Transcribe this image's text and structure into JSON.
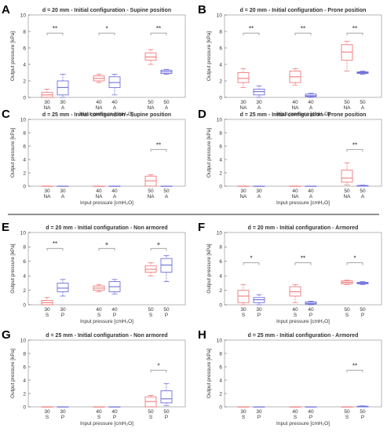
{
  "figure": {
    "separator": true
  },
  "colors": {
    "red": "#f07a7a",
    "blue": "#6f6fdc",
    "axis": "#333333",
    "bracket": "#888888"
  },
  "chart_data": [
    {
      "id": "A",
      "type": "box",
      "label": "A",
      "title": "d = 20 mm - Initial configuration - Supine position",
      "ylabel": "Output pressure [kPa]",
      "xlabel": "Input pressure [cmH₂O]",
      "ylim": [
        0,
        10
      ],
      "yticks": [
        0,
        2,
        4,
        6,
        8,
        10
      ],
      "categories": [
        "30",
        "30",
        "40",
        "40",
        "50",
        "50"
      ],
      "sublabels": [
        "NA",
        "A",
        "NA",
        "A",
        "NA",
        "A"
      ],
      "colors": [
        "red",
        "blue",
        "red",
        "blue",
        "red",
        "blue"
      ],
      "boxes": [
        {
          "min": 0,
          "q1": 0,
          "med": 0.3,
          "q3": 0.6,
          "max": 1
        },
        {
          "min": 0,
          "q1": 0.3,
          "med": 1.2,
          "q3": 2,
          "max": 2.8
        },
        {
          "min": 1.8,
          "q1": 2,
          "med": 2.3,
          "q3": 2.6,
          "max": 2.8
        },
        {
          "min": 0.3,
          "q1": 1.2,
          "med": 1.8,
          "q3": 2.5,
          "max": 2.8
        },
        {
          "min": 4,
          "q1": 4.5,
          "med": 4.9,
          "q3": 5.4,
          "max": 5.8
        },
        {
          "min": 2.8,
          "q1": 2.9,
          "med": 3.1,
          "q3": 3.3,
          "max": 3.4
        }
      ],
      "significance": [
        {
          "pair": [
            0,
            1
          ],
          "y": 7.8,
          "label": "**"
        },
        {
          "pair": [
            2,
            3
          ],
          "y": 7.8,
          "label": "*"
        },
        {
          "pair": [
            4,
            5
          ],
          "y": 7.8,
          "label": "**"
        }
      ]
    },
    {
      "id": "B",
      "type": "box",
      "label": "B",
      "title": "d = 20 mm - Initial configuration - Prone position",
      "ylabel": "Output pressure [kPa]",
      "xlabel": "Input pressure [cmH₂O]",
      "ylim": [
        0,
        10
      ],
      "yticks": [
        0,
        2,
        4,
        6,
        8,
        10
      ],
      "categories": [
        "30",
        "30",
        "40",
        "40",
        "50",
        "50"
      ],
      "sublabels": [
        "NA",
        "A",
        "NA",
        "A",
        "NA",
        "A"
      ],
      "colors": [
        "red",
        "blue",
        "red",
        "blue",
        "red",
        "blue"
      ],
      "boxes": [
        {
          "min": 1.2,
          "q1": 1.8,
          "med": 2.3,
          "q3": 3,
          "max": 3.5
        },
        {
          "min": 0,
          "q1": 0.3,
          "med": 0.7,
          "q3": 1,
          "max": 1.4
        },
        {
          "min": 1.5,
          "q1": 1.8,
          "med": 2.5,
          "q3": 3.2,
          "max": 3.5
        },
        {
          "min": 0,
          "q1": 0.1,
          "med": 0.2,
          "q3": 0.4,
          "max": 0.5
        },
        {
          "min": 3.2,
          "q1": 4.5,
          "med": 5.5,
          "q3": 6.4,
          "max": 6.8
        },
        {
          "min": 2.8,
          "q1": 2.9,
          "med": 3,
          "q3": 3.1,
          "max": 3.2
        }
      ],
      "significance": [
        {
          "pair": [
            0,
            1
          ],
          "y": 7.8,
          "label": "**"
        },
        {
          "pair": [
            2,
            3
          ],
          "y": 7.8,
          "label": "**"
        },
        {
          "pair": [
            4,
            5
          ],
          "y": 7.8,
          "label": "**"
        }
      ]
    },
    {
      "id": "C",
      "type": "box",
      "label": "C",
      "title": "d = 25 mm - Initial configuration - Supine position",
      "ylabel": "Output pressure [kPa]",
      "xlabel": "Input pressure [cmH₂O]",
      "ylim": [
        0,
        10
      ],
      "yticks": [
        0,
        2,
        4,
        6,
        8,
        10
      ],
      "categories": [
        "30",
        "30",
        "40",
        "40",
        "50",
        "50"
      ],
      "sublabels": [
        "NA",
        "A",
        "NA",
        "A",
        "NA",
        "A"
      ],
      "colors": [
        "red",
        "blue",
        "red",
        "blue",
        "red",
        "blue"
      ],
      "boxes": [
        {
          "min": 0,
          "q1": 0,
          "med": 0,
          "q3": 0,
          "max": 0
        },
        {
          "min": 0,
          "q1": 0,
          "med": 0,
          "q3": 0,
          "max": 0
        },
        {
          "min": 0,
          "q1": 0,
          "med": 0,
          "q3": 0,
          "max": 0
        },
        {
          "min": 0,
          "q1": 0,
          "med": 0,
          "q3": 0,
          "max": 0
        },
        {
          "min": 0,
          "q1": 0,
          "med": 0.8,
          "q3": 1.5,
          "max": 1.7
        },
        {
          "min": 0,
          "q1": 0,
          "med": 0,
          "q3": 0,
          "max": 0
        }
      ],
      "significance": [
        {
          "pair": [
            4,
            5
          ],
          "y": 5.5,
          "label": "**"
        }
      ]
    },
    {
      "id": "D",
      "type": "box",
      "label": "D",
      "title": "d = 25 mm - Initial configuration - Prone position",
      "ylabel": "Output pressure [kPa]",
      "xlabel": "Input pressure [cmH₂O]",
      "ylim": [
        0,
        10
      ],
      "yticks": [
        0,
        2,
        4,
        6,
        8,
        10
      ],
      "categories": [
        "30",
        "30",
        "40",
        "40",
        "50",
        "50"
      ],
      "sublabels": [
        "NA",
        "A",
        "NA",
        "A",
        "NA",
        "A"
      ],
      "colors": [
        "red",
        "blue",
        "red",
        "blue",
        "red",
        "blue"
      ],
      "boxes": [
        {
          "min": 0,
          "q1": 0,
          "med": 0,
          "q3": 0,
          "max": 0
        },
        {
          "min": 0,
          "q1": 0,
          "med": 0,
          "q3": 0,
          "max": 0
        },
        {
          "min": 0,
          "q1": 0,
          "med": 0,
          "q3": 0,
          "max": 0
        },
        {
          "min": 0,
          "q1": 0,
          "med": 0,
          "q3": 0,
          "max": 0
        },
        {
          "min": 0.2,
          "q1": 0.6,
          "med": 1.2,
          "q3": 2.4,
          "max": 3.5
        },
        {
          "min": 0,
          "q1": 0,
          "med": 0.05,
          "q3": 0.1,
          "max": 0.15
        }
      ],
      "significance": [
        {
          "pair": [
            4,
            5
          ],
          "y": 5.5,
          "label": "**"
        }
      ]
    },
    {
      "id": "E",
      "type": "box",
      "label": "E",
      "title": "d = 20 mm - Initial configuration - Non armored",
      "ylabel": "Output pressure [kPa]",
      "xlabel": "Input pressure [cmH₂O]",
      "ylim": [
        0,
        10
      ],
      "yticks": [
        0,
        2,
        4,
        6,
        8,
        10
      ],
      "categories": [
        "30",
        "30",
        "40",
        "40",
        "50",
        "50"
      ],
      "sublabels": [
        "S",
        "P",
        "S",
        "P",
        "S",
        "P"
      ],
      "colors": [
        "red",
        "blue",
        "red",
        "blue",
        "red",
        "blue"
      ],
      "boxes": [
        {
          "min": 0,
          "q1": 0,
          "med": 0.3,
          "q3": 0.6,
          "max": 1
        },
        {
          "min": 1.2,
          "q1": 1.8,
          "med": 2.3,
          "q3": 3,
          "max": 3.5
        },
        {
          "min": 1.8,
          "q1": 2,
          "med": 2.3,
          "q3": 2.6,
          "max": 2.8
        },
        {
          "min": 1.5,
          "q1": 1.8,
          "med": 2.5,
          "q3": 3.2,
          "max": 3.5
        },
        {
          "min": 4,
          "q1": 4.5,
          "med": 4.9,
          "q3": 5.4,
          "max": 5.8
        },
        {
          "min": 3.2,
          "q1": 4.5,
          "med": 5.5,
          "q3": 6.4,
          "max": 6.8
        }
      ],
      "significance": [
        {
          "pair": [
            0,
            1
          ],
          "y": 7.8,
          "label": "**"
        },
        {
          "pair": [
            2,
            3
          ],
          "y": 7.8,
          "label": "+"
        },
        {
          "pair": [
            4,
            5
          ],
          "y": 7.8,
          "label": "+"
        }
      ]
    },
    {
      "id": "F",
      "type": "box",
      "label": "F",
      "title": "d = 20 mm - Initial configuration - Armored",
      "ylabel": "Output pressure [kPa]",
      "xlabel": "Input pressure [cmH₂O]",
      "ylim": [
        0,
        10
      ],
      "yticks": [
        0,
        2,
        4,
        6,
        8,
        10
      ],
      "categories": [
        "30",
        "30",
        "40",
        "40",
        "50",
        "50"
      ],
      "sublabels": [
        "S",
        "P",
        "S",
        "P",
        "S",
        "P"
      ],
      "colors": [
        "red",
        "blue",
        "red",
        "blue",
        "red",
        "blue"
      ],
      "boxes": [
        {
          "min": 0,
          "q1": 0.3,
          "med": 1.2,
          "q3": 2,
          "max": 2.8
        },
        {
          "min": 0,
          "q1": 0.3,
          "med": 0.7,
          "q3": 1,
          "max": 1.4
        },
        {
          "min": 0.3,
          "q1": 1.2,
          "med": 1.8,
          "q3": 2.5,
          "max": 2.8
        },
        {
          "min": 0,
          "q1": 0.1,
          "med": 0.2,
          "q3": 0.4,
          "max": 0.5
        },
        {
          "min": 2.8,
          "q1": 2.9,
          "med": 3.1,
          "q3": 3.3,
          "max": 3.4
        },
        {
          "min": 2.8,
          "q1": 2.9,
          "med": 3,
          "q3": 3.1,
          "max": 3.2
        }
      ],
      "significance": [
        {
          "pair": [
            0,
            1
          ],
          "y": 5.8,
          "label": "*"
        },
        {
          "pair": [
            2,
            3
          ],
          "y": 5.8,
          "label": "**"
        },
        {
          "pair": [
            4,
            5
          ],
          "y": 5.8,
          "label": "*"
        }
      ]
    },
    {
      "id": "G",
      "type": "box",
      "label": "G",
      "title": "d = 25 mm - Initial configuration - Non armored",
      "ylabel": "Output pressure [kPa]",
      "xlabel": "Input pressure [cmH₂O]",
      "ylim": [
        0,
        10
      ],
      "yticks": [
        0,
        2,
        4,
        6,
        8,
        10
      ],
      "categories": [
        "30",
        "30",
        "40",
        "40",
        "50",
        "50"
      ],
      "sublabels": [
        "S",
        "P",
        "S",
        "P",
        "S",
        "P"
      ],
      "colors": [
        "red",
        "blue",
        "red",
        "blue",
        "red",
        "blue"
      ],
      "boxes": [
        {
          "min": 0,
          "q1": 0,
          "med": 0,
          "q3": 0,
          "max": 0
        },
        {
          "min": 0,
          "q1": 0,
          "med": 0,
          "q3": 0,
          "max": 0
        },
        {
          "min": 0,
          "q1": 0,
          "med": 0,
          "q3": 0,
          "max": 0
        },
        {
          "min": 0,
          "q1": 0,
          "med": 0,
          "q3": 0,
          "max": 0
        },
        {
          "min": 0,
          "q1": 0,
          "med": 0.8,
          "q3": 1.5,
          "max": 1.7
        },
        {
          "min": 0.2,
          "q1": 0.6,
          "med": 1.2,
          "q3": 2.4,
          "max": 3.5
        }
      ],
      "significance": [
        {
          "pair": [
            4,
            5
          ],
          "y": 5.5,
          "label": "*"
        }
      ]
    },
    {
      "id": "H",
      "type": "box",
      "label": "H",
      "title": "d = 25 mm - Initial configuration - Armored",
      "ylabel": "Output pressure [kPa]",
      "xlabel": "Input pressure [cmH₂O]",
      "ylim": [
        0,
        10
      ],
      "yticks": [
        0,
        2,
        4,
        6,
        8,
        10
      ],
      "categories": [
        "30",
        "30",
        "40",
        "40",
        "50",
        "50"
      ],
      "sublabels": [
        "S",
        "P",
        "S",
        "P",
        "S",
        "P"
      ],
      "colors": [
        "red",
        "blue",
        "red",
        "blue",
        "red",
        "blue"
      ],
      "boxes": [
        {
          "min": 0,
          "q1": 0,
          "med": 0,
          "q3": 0,
          "max": 0
        },
        {
          "min": 0,
          "q1": 0,
          "med": 0,
          "q3": 0,
          "max": 0
        },
        {
          "min": 0,
          "q1": 0,
          "med": 0,
          "q3": 0,
          "max": 0
        },
        {
          "min": 0,
          "q1": 0,
          "med": 0,
          "q3": 0,
          "max": 0
        },
        {
          "min": 0,
          "q1": 0,
          "med": 0,
          "q3": 0,
          "max": 0
        },
        {
          "min": 0,
          "q1": 0,
          "med": 0.05,
          "q3": 0.1,
          "max": 0.15
        }
      ],
      "significance": [
        {
          "pair": [
            4,
            5
          ],
          "y": 5.5,
          "label": "**"
        }
      ]
    }
  ]
}
